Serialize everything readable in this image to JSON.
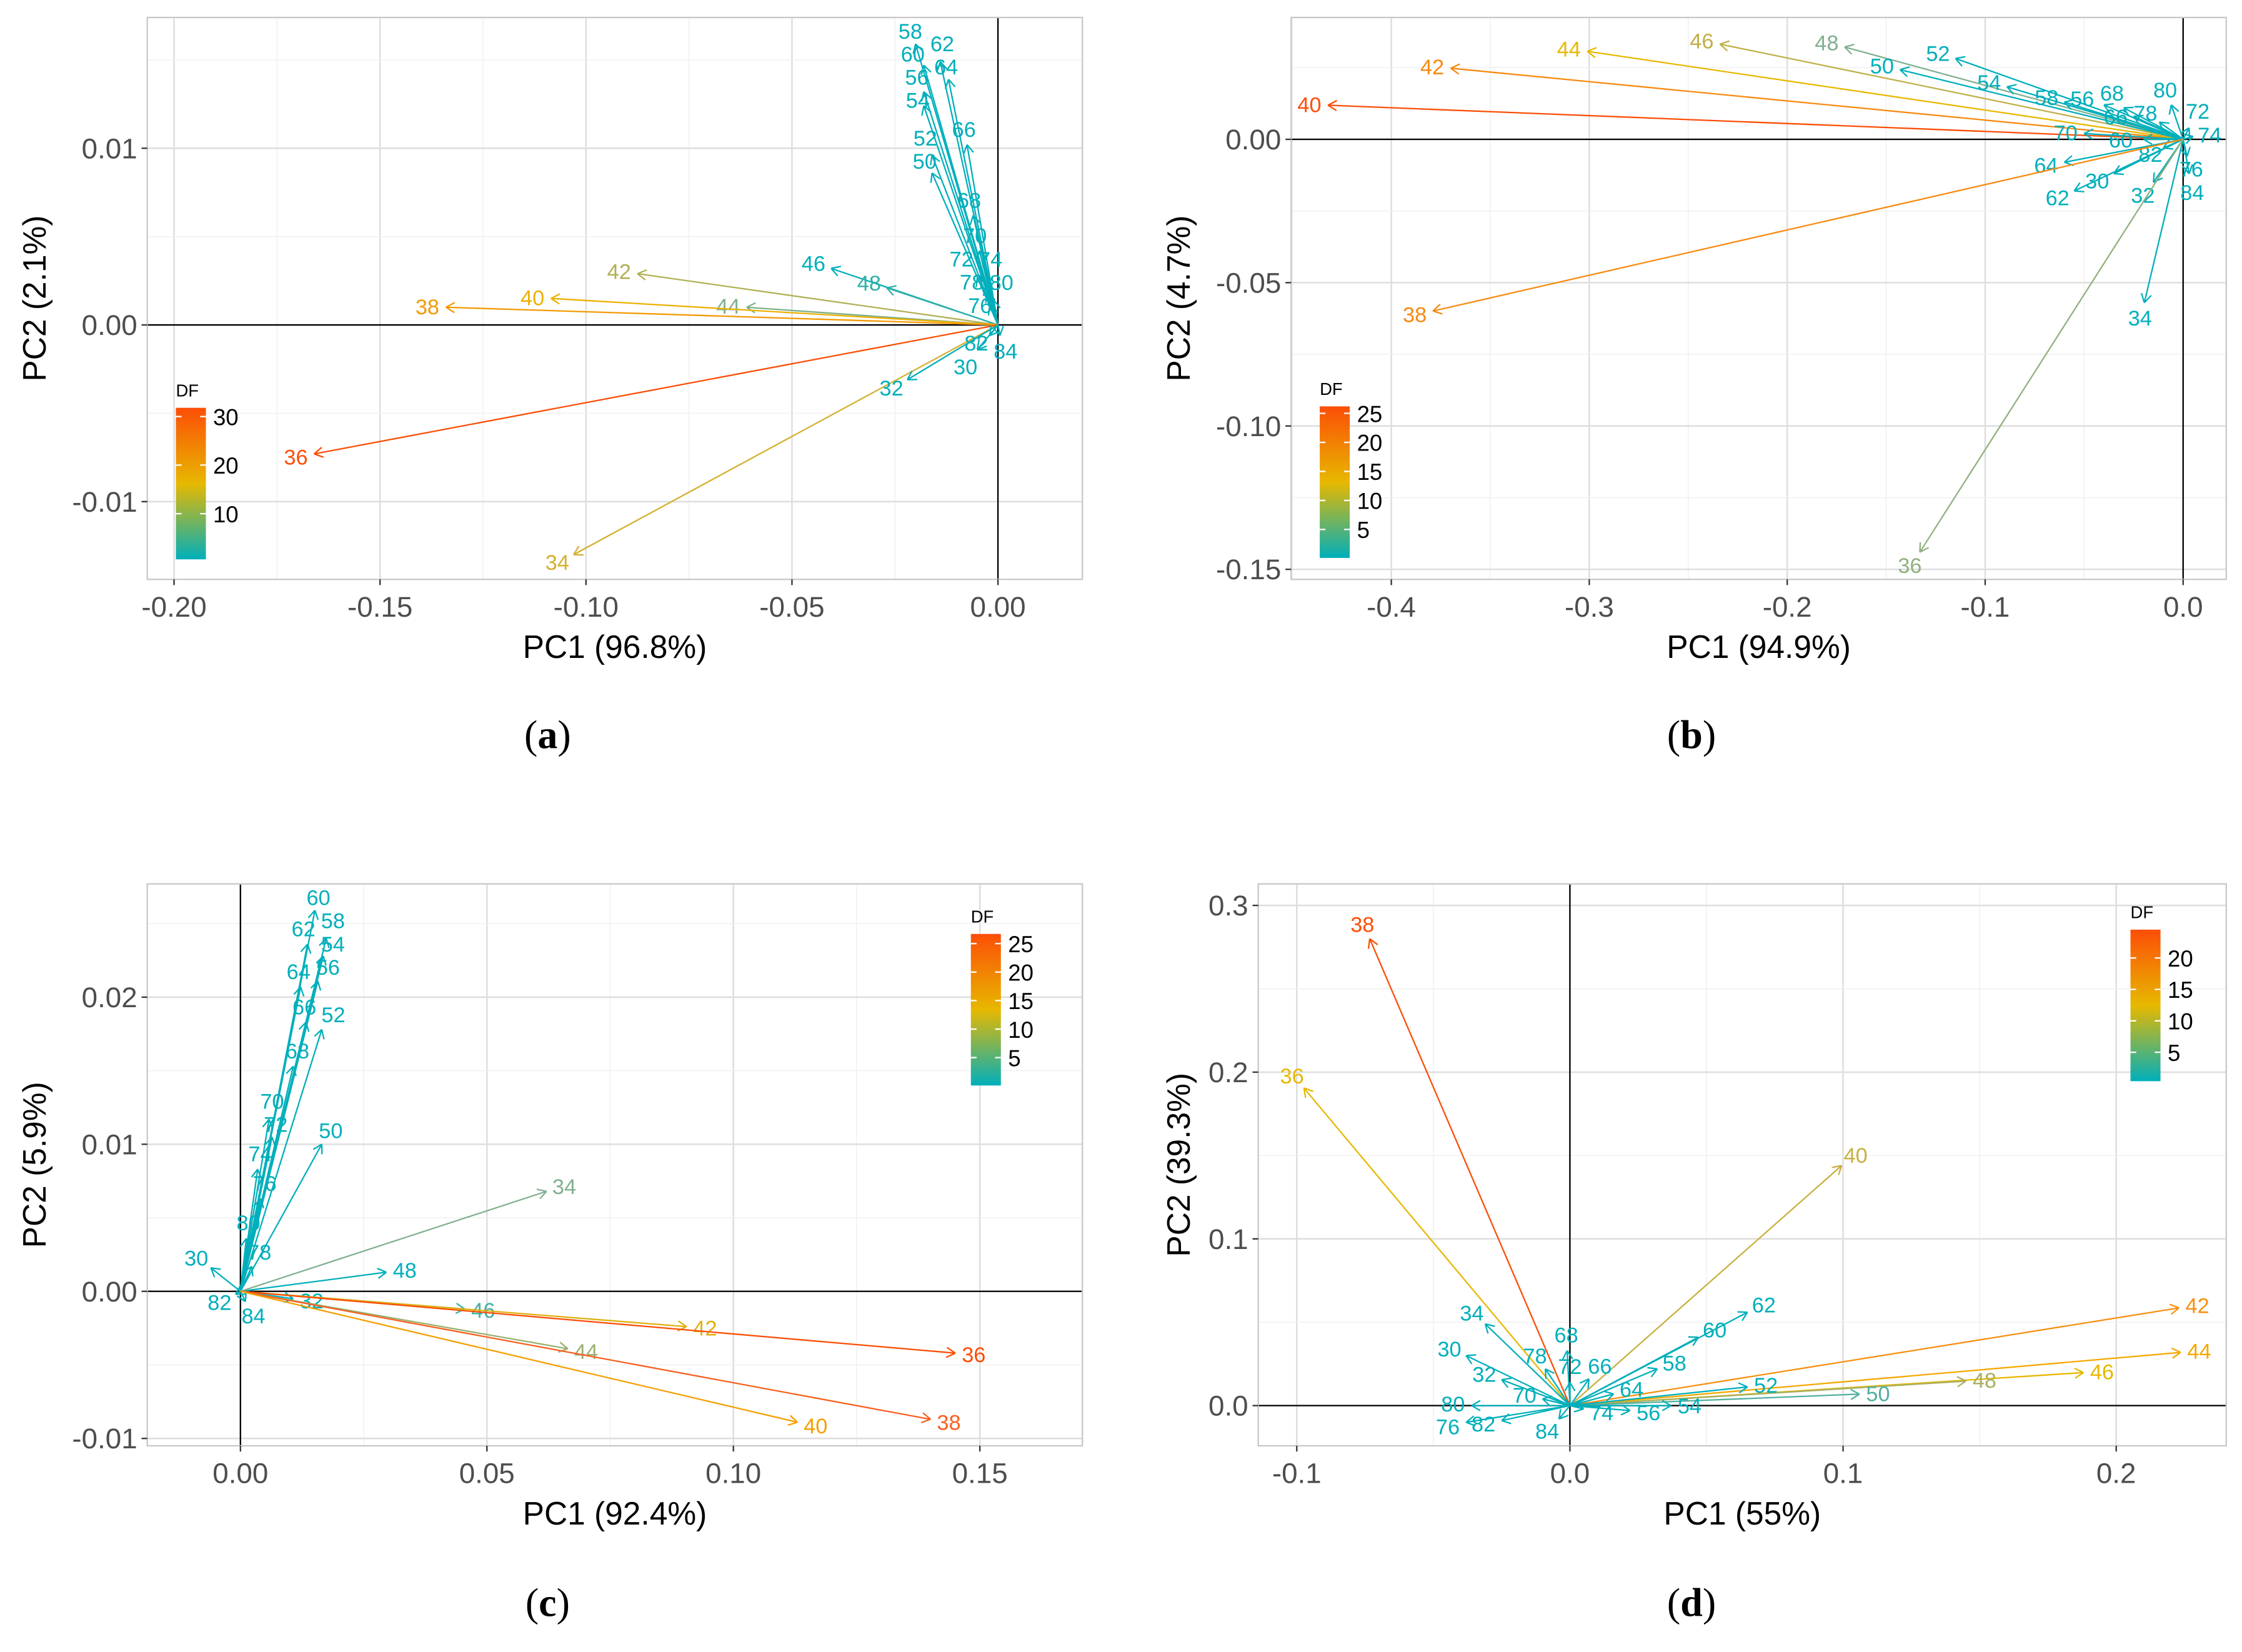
{
  "chart_data": [
    {
      "type": "biplot",
      "panel_caption": "a",
      "xlabel": "PC1 (96.8%)",
      "ylabel": "PC2 (2.1%)",
      "xlim": [
        -0.2065,
        0.0205
      ],
      "ylim": [
        -0.0144,
        0.0174
      ],
      "xticks": [
        -0.2,
        -0.15,
        -0.1,
        -0.05,
        0.0
      ],
      "xtick_labels": [
        "-0.20",
        "-0.15",
        "-0.10",
        "-0.05",
        "0.00"
      ],
      "yticks": [
        -0.01,
        0.0,
        0.01
      ],
      "ytick_labels": [
        "-0.01",
        "0.00",
        "0.01"
      ],
      "grid": true,
      "legend": {
        "title": "DF",
        "ticks": [
          10,
          20,
          30
        ],
        "labels": [
          "10",
          "20",
          "30"
        ],
        "range": [
          0.6,
          31.8
        ],
        "placement": "bottom-left"
      },
      "arrows": [
        [
          "58",
          -0.02,
          0.0159,
          "#00AFBB"
        ],
        [
          "60",
          -0.018,
          0.0147,
          "#00AFBB"
        ],
        [
          "62",
          -0.014,
          0.0149,
          "#00AFBB"
        ],
        [
          "64",
          -0.012,
          0.0139,
          "#00AFBB"
        ],
        [
          "56",
          -0.018,
          0.0132,
          "#00AFBB"
        ],
        [
          "54",
          -0.018,
          0.0124,
          "#00AFBB"
        ],
        [
          "66",
          -0.0075,
          0.0102,
          "#00AFBB"
        ],
        [
          "52",
          -0.016,
          0.0096,
          "#00AFBB"
        ],
        [
          "50",
          -0.016,
          0.0086,
          "#00AFBB"
        ],
        [
          "68",
          -0.006,
          0.0062,
          "#00AFBB"
        ],
        [
          "70",
          -0.0045,
          0.0042,
          "#00AFBB"
        ],
        [
          "72",
          -0.005,
          0.0027,
          "#00AFBB"
        ],
        [
          "76",
          -0.003,
          0.0022,
          "#00AFBB"
        ],
        [
          "74",
          -0.0025,
          0.0018,
          "#00AFBB"
        ],
        [
          "80",
          -0.001,
          0.0014,
          "#00AFBB"
        ],
        [
          "78",
          -0.002,
          0.0011,
          "#00AFBB"
        ],
        [
          "46",
          -0.0405,
          0.0032,
          "#00AFBB"
        ],
        [
          "48",
          -0.027,
          0.0021,
          "#30B0A8"
        ],
        [
          "44",
          -0.061,
          0.001,
          "#7DB08A"
        ],
        [
          "42",
          -0.0875,
          0.0029,
          "#B0B055"
        ],
        [
          "40",
          -0.1085,
          0.0015,
          "#EDB000"
        ],
        [
          "38",
          -0.134,
          0.001,
          "#F39A05"
        ],
        [
          "36",
          -0.166,
          -0.0073,
          "#FC4E07"
        ],
        [
          "34",
          -0.103,
          -0.013,
          "#D4B030"
        ],
        [
          "32",
          -0.022,
          -0.0031,
          "#00AFBB"
        ],
        [
          "30",
          -0.005,
          -0.0014,
          "#00AFBB"
        ],
        [
          "82",
          -0.002,
          -0.0006,
          "#00AFBB"
        ],
        [
          "84",
          0.0005,
          -0.0006,
          "#00AFBB"
        ]
      ]
    },
    {
      "type": "biplot",
      "panel_caption": "b",
      "xlabel": "PC1 (94.9%)",
      "ylabel": "PC2 (4.7%)",
      "xlim": [
        -0.4506,
        0.0218
      ],
      "ylim": [
        -0.1535,
        0.0425
      ],
      "xticks": [
        -0.4,
        -0.3,
        -0.2,
        -0.1,
        0.0
      ],
      "xtick_labels": [
        "-0.4",
        "-0.3",
        "-0.2",
        "-0.1",
        "0.0"
      ],
      "yticks": [
        -0.15,
        -0.1,
        -0.05,
        0.0
      ],
      "ytick_labels": [
        "-0.15",
        "-0.10",
        "-0.05",
        "0.00"
      ],
      "grid": true,
      "legend": {
        "title": "DF",
        "ticks": [
          5,
          10,
          15,
          20,
          25
        ],
        "labels": [
          "5",
          "10",
          "15",
          "20",
          "25"
        ],
        "range": [
          0.1,
          26.2
        ],
        "placement": "bottom-left"
      },
      "arrows": [
        [
          "40",
          -0.432,
          0.0119,
          "#FC4E07"
        ],
        [
          "42",
          -0.37,
          0.0248,
          "#F88A10"
        ],
        [
          "44",
          -0.301,
          0.0307,
          "#E7B800"
        ],
        [
          "46",
          -0.234,
          0.0332,
          "#C0B048"
        ],
        [
          "48",
          -0.171,
          0.0322,
          "#80B090"
        ],
        [
          "50",
          -0.143,
          0.0243,
          "#00AFBB"
        ],
        [
          "52",
          -0.115,
          0.0282,
          "#00AFBB"
        ],
        [
          "54",
          -0.089,
          0.0183,
          "#00AFBB"
        ],
        [
          "58",
          -0.06,
          0.013,
          "#00AFBB"
        ],
        [
          "56",
          -0.04,
          0.012,
          "#00AFBB"
        ],
        [
          "68",
          -0.03,
          0.011,
          "#00AFBB"
        ],
        [
          "66",
          -0.025,
          0.008,
          "#00AFBB"
        ],
        [
          "78",
          -0.012,
          0.006,
          "#00AFBB"
        ],
        [
          "80",
          -0.006,
          0.012,
          "#00AFBB"
        ],
        [
          "72",
          0.003,
          0.004,
          "#00AFBB"
        ],
        [
          "74",
          0.005,
          0.001,
          "#00AFBB"
        ],
        [
          "70",
          -0.05,
          0.002,
          "#00AFBB"
        ],
        [
          "60",
          -0.02,
          0.0,
          "#00AFBB"
        ],
        [
          "64",
          -0.06,
          -0.008,
          "#00AFBB"
        ],
        [
          "62",
          -0.055,
          -0.018,
          "#00AFBB"
        ],
        [
          "30",
          -0.035,
          -0.012,
          "#00AFBB"
        ],
        [
          "82",
          -0.01,
          -0.003,
          "#00AFBB"
        ],
        [
          "32",
          -0.015,
          -0.015,
          "#00AFBB"
        ],
        [
          "76",
          0.002,
          -0.006,
          "#00AFBB"
        ],
        [
          "84",
          0.003,
          -0.012,
          "#00AFBB"
        ],
        [
          "38",
          -0.379,
          -0.0599,
          "#F88A10"
        ],
        [
          "34",
          -0.0196,
          -0.057,
          "#00AFBB"
        ],
        [
          "36",
          -0.133,
          -0.144,
          "#90B080"
        ]
      ]
    },
    {
      "type": "biplot",
      "panel_caption": "c",
      "xlabel": "PC1 (92.4%)",
      "ylabel": "PC2 (5.9%)",
      "xlim": [
        -0.0189,
        0.1708
      ],
      "ylim": [
        -0.0105,
        0.0277
      ],
      "xticks": [
        0.0,
        0.05,
        0.1,
        0.15
      ],
      "xtick_labels": [
        "0.00",
        "0.05",
        "0.10",
        "0.15"
      ],
      "yticks": [
        -0.01,
        0.0,
        0.01,
        0.02
      ],
      "ytick_labels": [
        "-0.01",
        "0.00",
        "0.01",
        "0.02"
      ],
      "grid": true,
      "legend": {
        "title": "DF",
        "ticks": [
          5,
          10,
          15,
          20,
          25
        ],
        "labels": [
          "5",
          "10",
          "15",
          "20",
          "25"
        ],
        "range": [
          0.1,
          26.7
        ],
        "placement": "top-right"
      },
      "arrows": [
        [
          "60",
          0.0151,
          0.0259,
          "#00AFBB"
        ],
        [
          "58",
          0.0174,
          0.024,
          "#00AFBB"
        ],
        [
          "62",
          0.0136,
          0.0236,
          "#00AFBB"
        ],
        [
          "54",
          0.0168,
          0.0228,
          "#00AFBB"
        ],
        [
          "64",
          0.0122,
          0.0207,
          "#00AFBB"
        ],
        [
          "56",
          0.0157,
          0.0211,
          "#00AFBB"
        ],
        [
          "66",
          0.0133,
          0.0183,
          "#00AFBB"
        ],
        [
          "52",
          0.0165,
          0.0178,
          "#00AFBB"
        ],
        [
          "68",
          0.0107,
          0.0153,
          "#00AFBB"
        ],
        [
          "70",
          0.0058,
          0.0117,
          "#00AFBB"
        ],
        [
          "72",
          0.0064,
          0.0105,
          "#00AFBB"
        ],
        [
          "50",
          0.0165,
          0.01,
          "#00AFBB"
        ],
        [
          "74",
          0.0035,
          0.0083,
          "#00AFBB"
        ],
        [
          "76",
          0.0041,
          0.0063,
          "#00AFBB"
        ],
        [
          "80",
          0.0012,
          0.0036,
          "#00AFBB"
        ],
        [
          "78",
          0.0023,
          0.0017,
          "#00AFBB"
        ],
        [
          "30",
          -0.006,
          0.0016,
          "#00AFBB"
        ],
        [
          "48",
          0.0296,
          0.0013,
          "#00AFBB"
        ],
        [
          "34",
          0.0621,
          0.0068,
          "#80B090"
        ],
        [
          "32",
          0.0107,
          -0.0005,
          "#00AFBB"
        ],
        [
          "82",
          -0.001,
          -0.0002,
          "#00AFBB"
        ],
        [
          "84",
          0.001,
          -0.0007,
          "#00AFBB"
        ],
        [
          "46",
          0.0455,
          -0.0012,
          "#40B0A8"
        ],
        [
          "44",
          0.0664,
          -0.0039,
          "#98B070"
        ],
        [
          "42",
          0.0905,
          -0.0024,
          "#E0B010"
        ],
        [
          "36",
          0.145,
          -0.0042,
          "#FC4E07"
        ],
        [
          "38",
          0.14,
          -0.0087,
          "#F86020"
        ],
        [
          "40",
          0.113,
          -0.0089,
          "#F5A000"
        ]
      ]
    },
    {
      "type": "biplot",
      "panel_caption": "d",
      "xlabel": "PC1 (55%)",
      "ylabel": "PC2 (39.3%)",
      "xlim": [
        -0.1141,
        0.2403
      ],
      "ylim": [
        -0.0241,
        0.3129
      ],
      "xticks": [
        -0.1,
        0.0,
        0.1,
        0.2
      ],
      "xtick_labels": [
        "-0.1",
        "0.0",
        "0.1",
        "0.2"
      ],
      "yticks": [
        0.0,
        0.1,
        0.2,
        0.3
      ],
      "ytick_labels": [
        "0.0",
        "0.1",
        "0.2",
        "0.3"
      ],
      "grid": true,
      "legend": {
        "title": "DF",
        "ticks": [
          5,
          10,
          15,
          20
        ],
        "labels": [
          "5",
          "10",
          "15",
          "20"
        ],
        "range": [
          0.4,
          24.5
        ],
        "placement": "top-right"
      },
      "arrows": [
        [
          "38",
          -0.0733,
          0.28,
          "#FC4E07"
        ],
        [
          "36",
          -0.0974,
          0.1905,
          "#E7B800"
        ],
        [
          "40",
          0.0995,
          0.144,
          "#C8B040"
        ],
        [
          "42",
          0.223,
          0.0586,
          "#F89010"
        ],
        [
          "44",
          0.2236,
          0.0319,
          "#F5A800"
        ],
        [
          "46",
          0.188,
          0.0198,
          "#E7B800"
        ],
        [
          "48",
          0.145,
          0.0147,
          "#A8B060"
        ],
        [
          "50",
          0.106,
          0.0069,
          "#50B0A0"
        ],
        [
          "52",
          0.065,
          0.0112,
          "#00AFBB"
        ],
        [
          "62",
          0.065,
          0.056,
          "#00AFBB"
        ],
        [
          "60",
          0.047,
          0.041,
          "#00AFBB"
        ],
        [
          "58",
          0.032,
          0.022,
          "#00AFBB"
        ],
        [
          "54",
          0.037,
          0.0,
          "#00AFBB"
        ],
        [
          "56",
          0.022,
          -0.003,
          "#00AFBB"
        ],
        [
          "64",
          0.016,
          0.007,
          "#00AFBB"
        ],
        [
          "66",
          0.007,
          0.016,
          "#00AFBB"
        ],
        [
          "74",
          0.005,
          -0.002,
          "#00AFBB"
        ],
        [
          "68",
          -0.001,
          0.033,
          "#00AFBB"
        ],
        [
          "72",
          0.0,
          0.014,
          "#00AFBB"
        ],
        [
          "78",
          -0.009,
          0.022,
          "#00AFBB"
        ],
        [
          "34",
          -0.031,
          0.049,
          "#00AFBB"
        ],
        [
          "30",
          -0.038,
          0.03,
          "#00AFBB"
        ],
        [
          "32",
          -0.025,
          0.0155,
          "#00AFBB"
        ],
        [
          "70",
          -0.01,
          0.004,
          "#00AFBB"
        ],
        [
          "80",
          -0.036,
          0.0,
          "#00AFBB"
        ],
        [
          "76",
          -0.038,
          -0.01,
          "#00AFBB"
        ],
        [
          "82",
          -0.025,
          -0.009,
          "#00AFBB"
        ],
        [
          "84",
          -0.004,
          -0.008,
          "#00AFBB"
        ]
      ]
    }
  ],
  "colors": {
    "low": "#00AFBB",
    "mid": "#E7B800",
    "high": "#FC4E07"
  }
}
